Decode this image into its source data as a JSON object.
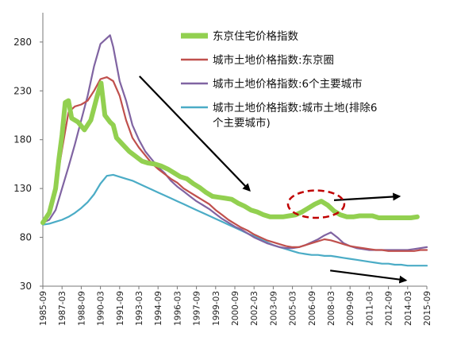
{
  "chart_data": {
    "type": "line",
    "title": "",
    "xlabel": "",
    "ylabel": "",
    "ylim": [
      30,
      310
    ],
    "yticks": [
      30,
      80,
      130,
      180,
      230,
      280
    ],
    "xlim": [
      1985.75,
      2015.75
    ],
    "xtick_labels": [
      "1985-09",
      "1987-03",
      "1988-09",
      "1990-03",
      "1991-09",
      "1993-03",
      "1994-09",
      "1996-03",
      "1997-09",
      "1999-03",
      "2000-09",
      "2002-03",
      "2003-09",
      "2005-03",
      "2006-09",
      "2008-03",
      "2009-09",
      "2011-03",
      "2012-09",
      "2014-03",
      "2015-09"
    ],
    "legend_position": "top-right",
    "series": [
      {
        "name": "东京住宅价格指数",
        "color": "#92d050",
        "points": [
          [
            1985.75,
            95
          ],
          [
            1986.25,
            105
          ],
          [
            1986.75,
            130
          ],
          [
            1987.0,
            160
          ],
          [
            1987.25,
            185
          ],
          [
            1987.5,
            218
          ],
          [
            1987.75,
            220
          ],
          [
            1988.0,
            202
          ],
          [
            1988.5,
            198
          ],
          [
            1989.0,
            190
          ],
          [
            1989.5,
            200
          ],
          [
            1990.0,
            225
          ],
          [
            1990.3,
            238
          ],
          [
            1990.6,
            205
          ],
          [
            1991.0,
            198
          ],
          [
            1991.25,
            195
          ],
          [
            1991.5,
            182
          ],
          [
            1992.0,
            175
          ],
          [
            1992.5,
            168
          ],
          [
            1993.0,
            163
          ],
          [
            1993.5,
            158
          ],
          [
            1994.0,
            156
          ],
          [
            1994.5,
            155
          ],
          [
            1995.0,
            153
          ],
          [
            1995.5,
            150
          ],
          [
            1996.0,
            146
          ],
          [
            1996.5,
            142
          ],
          [
            1997.0,
            140
          ],
          [
            1997.5,
            135
          ],
          [
            1998.0,
            131
          ],
          [
            1998.5,
            126
          ],
          [
            1999.0,
            122
          ],
          [
            1999.5,
            121
          ],
          [
            2000.0,
            120
          ],
          [
            2000.5,
            119
          ],
          [
            2001.0,
            115
          ],
          [
            2001.5,
            112
          ],
          [
            2002.0,
            108
          ],
          [
            2002.5,
            106
          ],
          [
            2003.0,
            103
          ],
          [
            2003.5,
            101
          ],
          [
            2004.0,
            101
          ],
          [
            2004.5,
            101
          ],
          [
            2005.0,
            102
          ],
          [
            2005.5,
            103
          ],
          [
            2006.0,
            106
          ],
          [
            2006.5,
            110
          ],
          [
            2007.0,
            114
          ],
          [
            2007.5,
            117
          ],
          [
            2008.0,
            113
          ],
          [
            2008.5,
            107
          ],
          [
            2009.0,
            103
          ],
          [
            2009.5,
            101
          ],
          [
            2010.0,
            101
          ],
          [
            2010.5,
            102
          ],
          [
            2011.0,
            102
          ],
          [
            2011.5,
            102
          ],
          [
            2012.0,
            100
          ],
          [
            2012.5,
            100
          ],
          [
            2013.0,
            100
          ],
          [
            2013.5,
            100
          ],
          [
            2014.0,
            100
          ],
          [
            2014.5,
            100
          ],
          [
            2015.0,
            101
          ]
        ]
      },
      {
        "name": "城市土地价格指数:东京圈",
        "color": "#c0504d",
        "points": [
          [
            1985.75,
            95
          ],
          [
            1986.25,
            105
          ],
          [
            1986.75,
            130
          ],
          [
            1987.25,
            170
          ],
          [
            1987.75,
            208
          ],
          [
            1988.25,
            214
          ],
          [
            1988.75,
            216
          ],
          [
            1989.25,
            220
          ],
          [
            1989.75,
            230
          ],
          [
            1990.25,
            242
          ],
          [
            1990.75,
            244
          ],
          [
            1991.25,
            240
          ],
          [
            1991.75,
            225
          ],
          [
            1992.25,
            200
          ],
          [
            1992.75,
            182
          ],
          [
            1993.25,
            172
          ],
          [
            1993.75,
            164
          ],
          [
            1994.25,
            156
          ],
          [
            1994.75,
            150
          ],
          [
            1995.25,
            145
          ],
          [
            1995.75,
            140
          ],
          [
            1996.25,
            136
          ],
          [
            1996.75,
            130
          ],
          [
            1997.25,
            126
          ],
          [
            1997.75,
            122
          ],
          [
            1998.25,
            118
          ],
          [
            1998.75,
            114
          ],
          [
            1999.25,
            108
          ],
          [
            1999.75,
            103
          ],
          [
            2000.25,
            98
          ],
          [
            2000.75,
            94
          ],
          [
            2001.25,
            90
          ],
          [
            2001.75,
            87
          ],
          [
            2002.25,
            83
          ],
          [
            2002.75,
            80
          ],
          [
            2003.25,
            77
          ],
          [
            2003.75,
            75
          ],
          [
            2004.25,
            73
          ],
          [
            2004.75,
            71
          ],
          [
            2005.25,
            70
          ],
          [
            2005.75,
            70
          ],
          [
            2006.25,
            72
          ],
          [
            2006.75,
            74
          ],
          [
            2007.25,
            76
          ],
          [
            2007.75,
            78
          ],
          [
            2008.25,
            77
          ],
          [
            2008.75,
            75
          ],
          [
            2009.25,
            73
          ],
          [
            2009.75,
            71
          ],
          [
            2010.25,
            70
          ],
          [
            2010.75,
            69
          ],
          [
            2011.25,
            68
          ],
          [
            2011.75,
            67
          ],
          [
            2012.25,
            67
          ],
          [
            2012.75,
            66
          ],
          [
            2013.25,
            66
          ],
          [
            2013.75,
            66
          ],
          [
            2014.25,
            66
          ],
          [
            2014.75,
            66
          ],
          [
            2015.25,
            67
          ],
          [
            2015.75,
            67
          ]
        ]
      },
      {
        "name": "城市土地价格指数:6个主要城市",
        "color": "#8064a2",
        "points": [
          [
            1985.75,
            95
          ],
          [
            1986.25,
            98
          ],
          [
            1986.75,
            108
          ],
          [
            1987.25,
            130
          ],
          [
            1987.75,
            152
          ],
          [
            1988.25,
            175
          ],
          [
            1988.75,
            200
          ],
          [
            1989.25,
            225
          ],
          [
            1989.75,
            255
          ],
          [
            1990.25,
            278
          ],
          [
            1990.75,
            284
          ],
          [
            1991.0,
            287
          ],
          [
            1991.25,
            275
          ],
          [
            1991.75,
            240
          ],
          [
            1992.25,
            220
          ],
          [
            1992.75,
            195
          ],
          [
            1993.25,
            180
          ],
          [
            1993.75,
            168
          ],
          [
            1994.25,
            160
          ],
          [
            1994.75,
            152
          ],
          [
            1995.25,
            146
          ],
          [
            1995.75,
            138
          ],
          [
            1996.25,
            132
          ],
          [
            1996.75,
            127
          ],
          [
            1997.25,
            122
          ],
          [
            1997.75,
            117
          ],
          [
            1998.25,
            113
          ],
          [
            1998.75,
            109
          ],
          [
            1999.25,
            104
          ],
          [
            1999.75,
            99
          ],
          [
            2000.25,
            95
          ],
          [
            2000.75,
            91
          ],
          [
            2001.25,
            88
          ],
          [
            2001.75,
            84
          ],
          [
            2002.25,
            80
          ],
          [
            2002.75,
            77
          ],
          [
            2003.25,
            74
          ],
          [
            2003.75,
            72
          ],
          [
            2004.25,
            70
          ],
          [
            2004.75,
            69
          ],
          [
            2005.25,
            69
          ],
          [
            2005.75,
            70
          ],
          [
            2006.25,
            72
          ],
          [
            2006.75,
            75
          ],
          [
            2007.25,
            78
          ],
          [
            2007.75,
            82
          ],
          [
            2008.25,
            85
          ],
          [
            2008.75,
            80
          ],
          [
            2009.25,
            74
          ],
          [
            2009.75,
            71
          ],
          [
            2010.25,
            69
          ],
          [
            2010.75,
            68
          ],
          [
            2011.25,
            67
          ],
          [
            2011.75,
            67
          ],
          [
            2012.25,
            67
          ],
          [
            2012.75,
            67
          ],
          [
            2013.25,
            67
          ],
          [
            2013.75,
            67
          ],
          [
            2014.25,
            67
          ],
          [
            2014.75,
            68
          ],
          [
            2015.25,
            69
          ],
          [
            2015.75,
            70
          ]
        ]
      },
      {
        "name": "城市土地价格指数:城市土地(排除6个主要城市)",
        "color": "#4bacc6",
        "points": [
          [
            1985.75,
            93
          ],
          [
            1986.25,
            94
          ],
          [
            1986.75,
            96
          ],
          [
            1987.25,
            98
          ],
          [
            1987.75,
            101
          ],
          [
            1988.25,
            105
          ],
          [
            1988.75,
            110
          ],
          [
            1989.25,
            116
          ],
          [
            1989.75,
            124
          ],
          [
            1990.25,
            135
          ],
          [
            1990.75,
            143
          ],
          [
            1991.25,
            144
          ],
          [
            1991.75,
            142
          ],
          [
            1992.25,
            140
          ],
          [
            1992.75,
            138
          ],
          [
            1993.25,
            135
          ],
          [
            1993.75,
            132
          ],
          [
            1994.25,
            129
          ],
          [
            1994.75,
            126
          ],
          [
            1995.25,
            123
          ],
          [
            1995.75,
            120
          ],
          [
            1996.25,
            117
          ],
          [
            1996.75,
            114
          ],
          [
            1997.25,
            111
          ],
          [
            1997.75,
            108
          ],
          [
            1998.25,
            105
          ],
          [
            1998.75,
            102
          ],
          [
            1999.25,
            99
          ],
          [
            1999.75,
            96
          ],
          [
            2000.25,
            93
          ],
          [
            2000.75,
            90
          ],
          [
            2001.25,
            87
          ],
          [
            2001.75,
            84
          ],
          [
            2002.25,
            81
          ],
          [
            2002.75,
            78
          ],
          [
            2003.25,
            75
          ],
          [
            2003.75,
            72
          ],
          [
            2004.25,
            70
          ],
          [
            2004.75,
            68
          ],
          [
            2005.25,
            66
          ],
          [
            2005.75,
            64
          ],
          [
            2006.25,
            63
          ],
          [
            2006.75,
            62
          ],
          [
            2007.25,
            62
          ],
          [
            2007.75,
            61
          ],
          [
            2008.25,
            61
          ],
          [
            2008.75,
            60
          ],
          [
            2009.25,
            59
          ],
          [
            2009.75,
            58
          ],
          [
            2010.25,
            57
          ],
          [
            2010.75,
            56
          ],
          [
            2011.25,
            55
          ],
          [
            2011.75,
            54
          ],
          [
            2012.25,
            53
          ],
          [
            2012.75,
            53
          ],
          [
            2013.25,
            52
          ],
          [
            2013.75,
            52
          ],
          [
            2014.25,
            51
          ],
          [
            2014.75,
            51
          ],
          [
            2015.25,
            51
          ],
          [
            2015.75,
            51
          ]
        ]
      }
    ],
    "legend": [
      {
        "label": "东京住宅价格指数",
        "color": "#92d050",
        "style": "thick"
      },
      {
        "label": "城市土地价格指数:东京圈",
        "color": "#c0504d",
        "style": "normal"
      },
      {
        "label": "城市土地价格指数:6个主要城市",
        "color": "#8064a2",
        "style": "normal"
      },
      {
        "label": "城市土地价格指数:城市土地(排除6",
        "label2": "个主要城市)",
        "color": "#4bacc6",
        "style": "normal"
      }
    ],
    "annotations": [
      {
        "type": "arrow",
        "from": [
          1993.3,
          245
        ],
        "to": [
          2001.9,
          128
        ],
        "color": "#000000"
      },
      {
        "type": "arrow",
        "from": [
          2008.5,
          118
        ],
        "to": [
          2013.6,
          122
        ],
        "color": "#000000"
      },
      {
        "type": "arrow",
        "from": [
          2008.2,
          46
        ],
        "to": [
          2014.1,
          36
        ],
        "color": "#000000"
      },
      {
        "type": "dashed-ellipse",
        "center": [
          2007.1,
          114
        ],
        "rx_years": 2.2,
        "ry_value": 14,
        "color": "#c00000"
      }
    ]
  }
}
